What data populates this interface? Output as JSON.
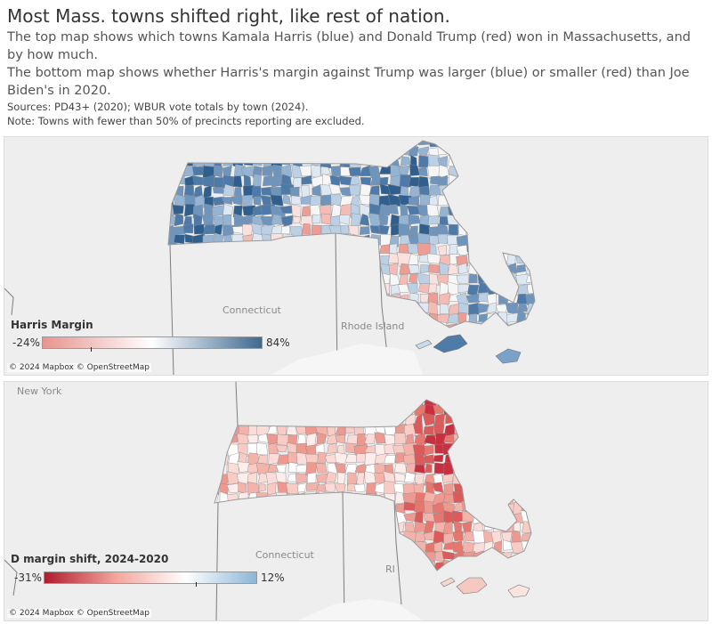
{
  "header": {
    "title": "Most Mass. towns shifted right, like rest of nation.",
    "line1": "The top map shows which towns Kamala Harris (blue) and Donald Trump (red) won in Massachusetts, and by how much.",
    "line2": "The bottom map shows whether Harris's margin against Trump was larger (blue) or smaller (red) than Joe Biden's in 2020.",
    "sources": "Sources: PD43+ (2020); WBUR vote totals by town (2024).",
    "note": "Note: Towns with fewer than 50% of precincts reporting are excluded."
  },
  "top_map": {
    "labels": {
      "connecticut": "Connecticut",
      "rhode_island": "Rhode Island"
    },
    "legend": {
      "title": "Harris Margin",
      "min": "-24%",
      "max": "84%",
      "colors": [
        "#e8948f",
        "#ffffff",
        "#3e6990"
      ]
    },
    "attribution": "© 2024 Mapbox © OpenStreetMap"
  },
  "bottom_map": {
    "labels": {
      "new_york": "New York",
      "connecticut": "Connecticut",
      "rhode_island": "RI"
    },
    "legend": {
      "title": "D margin shift, 2024-2020",
      "min": "-31%",
      "max": "12%",
      "colors": [
        "#b01c2e",
        "#f3a49c",
        "#ffffff",
        "#8db6d6"
      ]
    },
    "attribution": "© 2024 Mapbox © OpenStreetMap"
  }
}
